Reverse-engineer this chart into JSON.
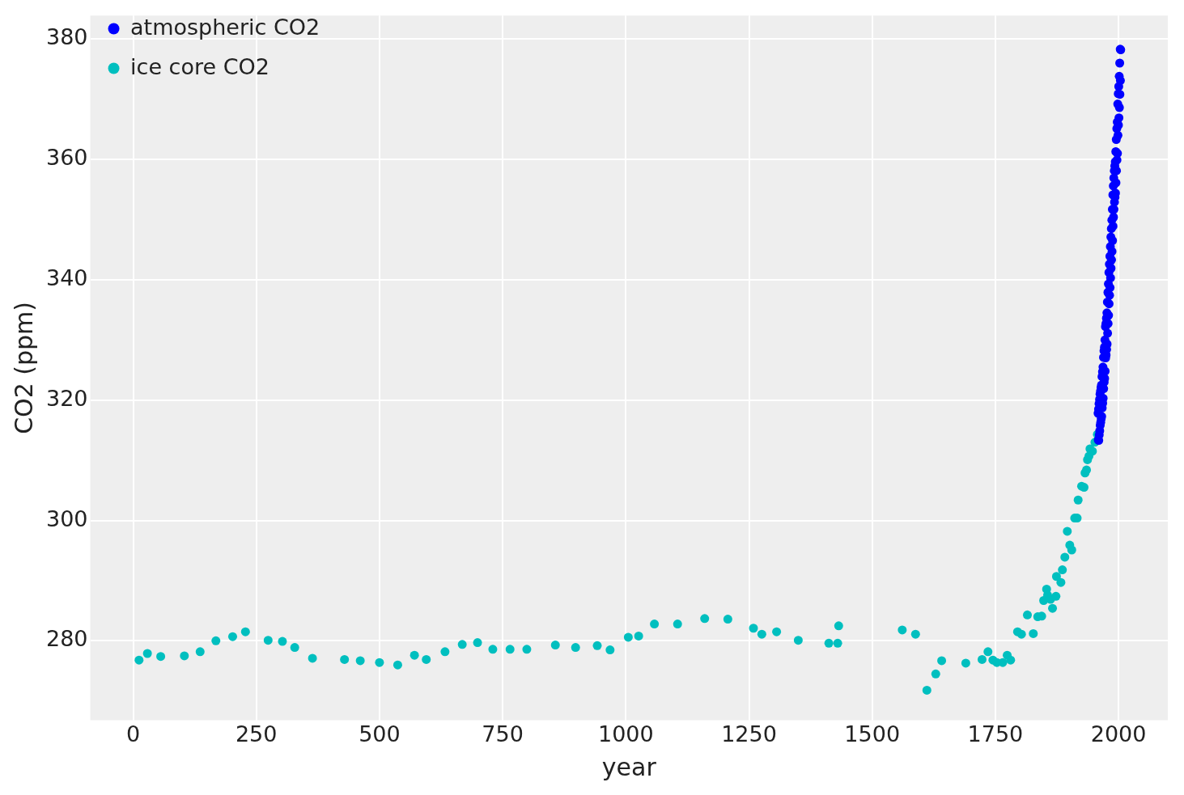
{
  "chart_data": {
    "type": "scatter",
    "xlabel": "year",
    "ylabel": "CO2 (ppm)",
    "xlim": [
      -87,
      2100
    ],
    "ylim": [
      266.8,
      383.9
    ],
    "xticks": [
      0,
      250,
      500,
      750,
      1000,
      1250,
      1500,
      1750,
      2000
    ],
    "yticks": [
      280,
      300,
      320,
      340,
      360,
      380
    ],
    "grid": true,
    "legend": "top left",
    "marker": "circle",
    "series": [
      {
        "name": "atmospheric CO2",
        "color": "#0000ff",
        "x": [
          1958.4,
          1958.8,
          1959.4,
          1959.8,
          1960.4,
          1960.8,
          1961.4,
          1961.8,
          1962.4,
          1962.8,
          1963.4,
          1963.8,
          1964.4,
          1964.8,
          1965.4,
          1965.8,
          1966.4,
          1966.8,
          1967.4,
          1967.8,
          1968.4,
          1968.8,
          1969.4,
          1969.8,
          1970.4,
          1970.8,
          1971.4,
          1971.8,
          1972.4,
          1972.8,
          1973.4,
          1973.8,
          1974.4,
          1974.8,
          1975.4,
          1975.8,
          1976.4,
          1976.8,
          1977.4,
          1977.8,
          1978.4,
          1978.8,
          1979.4,
          1979.8,
          1980.4,
          1980.8,
          1981.4,
          1981.8,
          1982.4,
          1982.8,
          1983.4,
          1983.8,
          1984.4,
          1984.8,
          1985.4,
          1985.8,
          1986.4,
          1986.8,
          1987.4,
          1987.8,
          1988.4,
          1988.8,
          1989.4,
          1989.8,
          1990.4,
          1990.8,
          1991.4,
          1991.8,
          1992.4,
          1992.8,
          1993.4,
          1993.8,
          1994.4,
          1994.8,
          1995.4,
          1995.8,
          1996.4,
          1996.8,
          1997.4,
          1997.8,
          1998.4,
          1998.8,
          1999.4,
          1999.8,
          2000.4,
          2000.8,
          2001.4,
          2001.8,
          2002.4,
          2002.8,
          2003.4,
          2003.8,
          2004.4
        ],
        "values": [
          317.8,
          313.4,
          318.5,
          313.3,
          319.4,
          314.2,
          320.1,
          314.9,
          321.0,
          315.8,
          321.5,
          316.3,
          322.1,
          316.9,
          322.5,
          317.3,
          323.9,
          318.7,
          324.7,
          319.5,
          325.5,
          320.3,
          327.1,
          321.9,
          328.2,
          323.0,
          328.8,
          323.6,
          330.0,
          324.8,
          332.2,
          327.0,
          332.7,
          327.5,
          333.6,
          328.4,
          334.5,
          329.3,
          336.3,
          331.1,
          337.9,
          332.7,
          339.3,
          334.1,
          341.2,
          336.0,
          342.6,
          337.4,
          343.9,
          338.7,
          345.5,
          340.3,
          347.1,
          341.9,
          348.5,
          343.3,
          349.9,
          344.7,
          351.7,
          346.5,
          354.1,
          348.9,
          355.6,
          350.4,
          356.9,
          351.7,
          358.1,
          352.9,
          358.9,
          353.7,
          359.6,
          354.4,
          361.3,
          356.1,
          363.3,
          358.1,
          365.1,
          359.9,
          366.2,
          361.0,
          369.2,
          364.0,
          370.9,
          365.7,
          372.1,
          366.9,
          373.8,
          368.6,
          376.0,
          370.8,
          378.3,
          373.1,
          378.2
        ]
      },
      {
        "name": "ice core CO2",
        "color": "#00bfbf",
        "x": [
          12,
          29,
          56,
          104,
          136,
          168,
          202,
          228,
          274,
          303,
          328,
          364,
          429,
          461,
          500,
          537,
          571,
          595,
          633,
          668,
          699,
          730,
          765,
          799,
          857,
          898,
          942,
          968,
          1005,
          1026,
          1058,
          1105,
          1160,
          1207,
          1259,
          1276,
          1306,
          1350,
          1412,
          1430,
          1432,
          1561,
          1588,
          1611,
          1629,
          1641,
          1690,
          1723,
          1735,
          1745,
          1753,
          1765,
          1774,
          1781,
          1795,
          1803,
          1815,
          1827,
          1836,
          1844,
          1848,
          1854,
          1856,
          1862,
          1866,
          1873,
          1874,
          1883,
          1886,
          1891,
          1896,
          1901,
          1905,
          1911,
          1916,
          1918,
          1925,
          1930,
          1932,
          1935,
          1937,
          1940,
          1942,
          1947,
          1952,
          1957
        ],
        "values": [
          276.8,
          277.9,
          277.4,
          277.5,
          278.2,
          280.0,
          280.7,
          281.5,
          280.1,
          279.9,
          278.9,
          277.1,
          276.9,
          276.7,
          276.4,
          276.0,
          277.6,
          276.9,
          278.2,
          279.4,
          279.7,
          278.6,
          278.6,
          278.6,
          279.3,
          278.9,
          279.2,
          278.5,
          280.6,
          280.8,
          282.8,
          282.8,
          283.7,
          283.6,
          282.1,
          281.1,
          281.5,
          280.1,
          279.6,
          279.6,
          282.5,
          281.8,
          281.1,
          271.8,
          274.5,
          276.7,
          276.3,
          276.9,
          278.2,
          276.8,
          276.4,
          276.4,
          277.6,
          276.8,
          281.5,
          281.1,
          284.3,
          281.2,
          284.0,
          284.1,
          286.7,
          288.6,
          287.6,
          286.9,
          285.4,
          287.4,
          290.7,
          289.7,
          291.8,
          293.9,
          298.2,
          295.9,
          295.1,
          300.4,
          300.4,
          303.4,
          305.7,
          305.5,
          307.9,
          308.4,
          310.1,
          310.7,
          311.9,
          311.5,
          313.0,
          314.3
        ]
      }
    ]
  }
}
